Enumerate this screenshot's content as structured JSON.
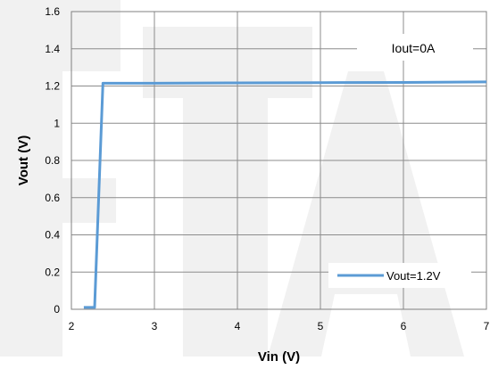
{
  "chart_data": {
    "type": "line",
    "title": "",
    "xlabel": "Vin (V)",
    "ylabel": "Vout (V)",
    "xlim": [
      2,
      7
    ],
    "ylim": [
      0,
      1.6
    ],
    "x_ticks": [
      "2",
      "3",
      "4",
      "5",
      "6",
      "7"
    ],
    "y_ticks": [
      "0",
      "0.2",
      "0.4",
      "0.6",
      "0.8",
      "1",
      "1.2",
      "1.4",
      "1.6"
    ],
    "grid": true,
    "legend_position": "bottom-right",
    "annotation": "Iout=0A",
    "series": [
      {
        "name": "Vout=1.2V",
        "color": "#5B9BD5",
        "x": [
          2.15,
          2.28,
          2.38,
          3.0,
          4.0,
          5.0,
          6.0,
          7.0
        ],
        "y": [
          0.01,
          0.01,
          1.215,
          1.215,
          1.217,
          1.218,
          1.219,
          1.222
        ]
      }
    ]
  }
}
